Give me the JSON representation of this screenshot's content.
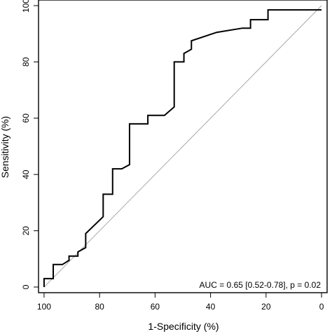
{
  "chart_data": {
    "type": "line",
    "title": "",
    "xlabel": "1-Specificity (%)",
    "ylabel": "Sensitivity (%)",
    "x_reversed": true,
    "xlim": [
      102,
      -2
    ],
    "ylim": [
      -2,
      102
    ],
    "x_ticks": [
      100,
      80,
      60,
      40,
      20,
      0
    ],
    "y_ticks": [
      0,
      20,
      40,
      60,
      80,
      100
    ],
    "grid": false,
    "annotation": "AUC = 0.65 [0.52-0.78], p = 0.02",
    "reference_line": {
      "x": [
        100,
        0
      ],
      "y": [
        0,
        100
      ],
      "color": "#aaaaaa"
    },
    "series": [
      {
        "color": "#000000",
        "x": [
          100,
          100,
          96.7,
          96.7,
          93.4,
          91,
          91,
          87.8,
          87.8,
          85,
          85,
          78.7,
          78.7,
          75.3,
          75.3,
          72,
          69.2,
          69.2,
          62.6,
          62.6,
          56.6,
          53.1,
          53.1,
          49.6,
          49.6,
          46.9,
          46.9,
          37.8,
          28.5,
          25.6,
          25.6,
          19.3,
          19.3,
          0
        ],
        "y": [
          0,
          3,
          3,
          8,
          8,
          9.5,
          11,
          11,
          12.5,
          14,
          19,
          25,
          33,
          33,
          42,
          42,
          43.5,
          58,
          58,
          61,
          61,
          64,
          80,
          80,
          83,
          84.5,
          87.5,
          90.5,
          92,
          92,
          95,
          95,
          98.5,
          98.5
        ]
      }
    ]
  }
}
